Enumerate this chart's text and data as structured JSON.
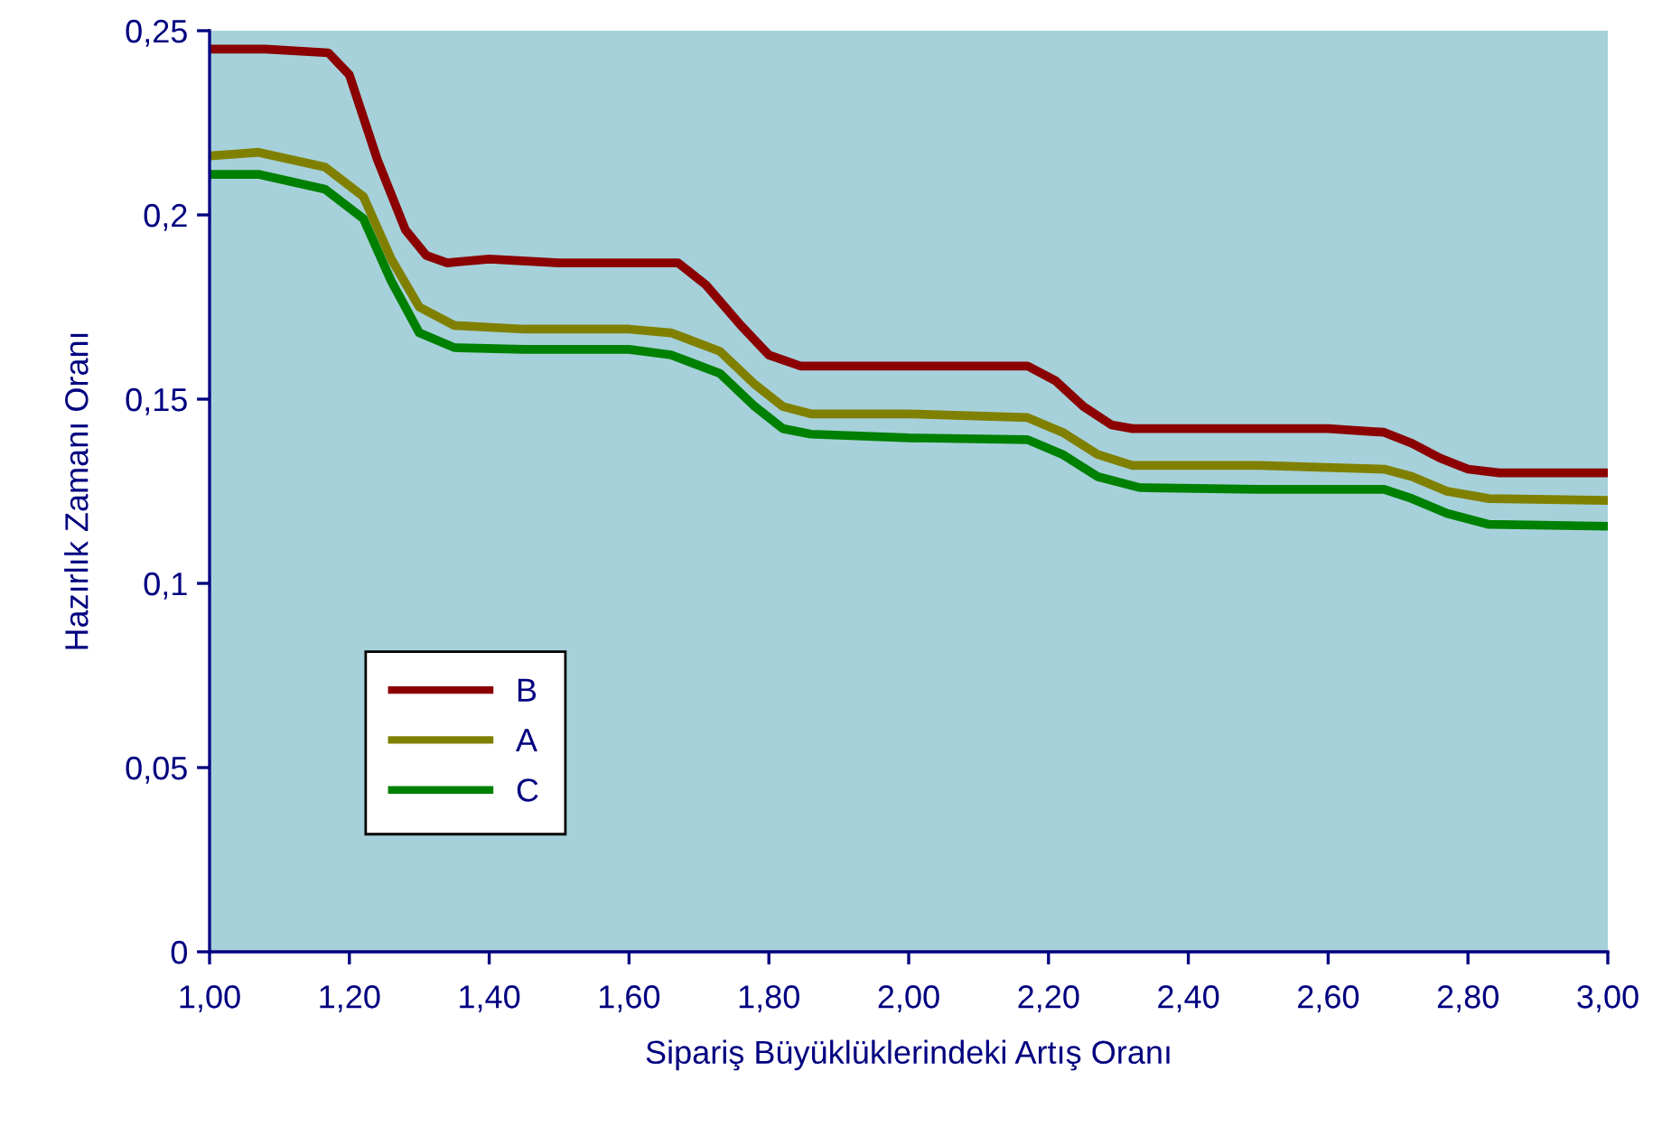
{
  "chart_data": {
    "type": "line",
    "xlabel": "Sipariş Büyüklüklerindeki Artış Oranı",
    "ylabel": "Hazırlık Zamanı Oranı",
    "xlim": [
      1.0,
      3.0
    ],
    "ylim": [
      0,
      0.25
    ],
    "xticks": [
      {
        "value": 1.0,
        "label": "1,00"
      },
      {
        "value": 1.2,
        "label": "1,20"
      },
      {
        "value": 1.4,
        "label": "1,40"
      },
      {
        "value": 1.6,
        "label": "1,60"
      },
      {
        "value": 1.8,
        "label": "1,80"
      },
      {
        "value": 2.0,
        "label": "2,00"
      },
      {
        "value": 2.2,
        "label": "2,20"
      },
      {
        "value": 2.4,
        "label": "2,40"
      },
      {
        "value": 2.6,
        "label": "2,60"
      },
      {
        "value": 2.8,
        "label": "2,80"
      },
      {
        "value": 3.0,
        "label": "3,00"
      }
    ],
    "yticks": [
      0,
      {
        "value": 0.05,
        "label": "0,05"
      },
      {
        "value": 0.1,
        "label": "0,1"
      },
      {
        "value": 0.15,
        "label": "0,15"
      },
      {
        "value": 0.2,
        "label": "0,2"
      },
      {
        "value": 0.25,
        "label": "0,25"
      }
    ],
    "grid": false,
    "legend": "bottom left",
    "marker": "none",
    "line_style": "solid",
    "series": [
      {
        "name": "B",
        "color": "#8b0000",
        "x": [
          1.0,
          1.08,
          1.17,
          1.2,
          1.24,
          1.28,
          1.31,
          1.34,
          1.4,
          1.5,
          1.62,
          1.67,
          1.71,
          1.76,
          1.8,
          1.845,
          1.95,
          2.1,
          2.17,
          2.21,
          2.25,
          2.29,
          2.32,
          2.45,
          2.6,
          2.68,
          2.72,
          2.76,
          2.8,
          2.845,
          3.0
        ],
        "values": [
          0.245,
          0.245,
          0.244,
          0.238,
          0.215,
          0.196,
          0.189,
          0.187,
          0.188,
          0.187,
          0.187,
          0.187,
          0.181,
          0.17,
          0.162,
          0.159,
          0.159,
          0.159,
          0.159,
          0.155,
          0.148,
          0.143,
          0.142,
          0.142,
          0.142,
          0.141,
          0.138,
          0.134,
          0.131,
          0.13,
          0.13
        ]
      },
      {
        "name": "A",
        "color": "#808000",
        "x": [
          1.0,
          1.07,
          1.165,
          1.22,
          1.26,
          1.3,
          1.35,
          1.45,
          1.6,
          1.66,
          1.73,
          1.78,
          1.82,
          1.86,
          2.0,
          2.17,
          2.22,
          2.27,
          2.32,
          2.5,
          2.68,
          2.72,
          2.77,
          2.83,
          3.0
        ],
        "values": [
          0.216,
          0.217,
          0.213,
          0.205,
          0.188,
          0.175,
          0.17,
          0.169,
          0.169,
          0.168,
          0.163,
          0.154,
          0.148,
          0.146,
          0.146,
          0.145,
          0.141,
          0.135,
          0.132,
          0.132,
          0.131,
          0.129,
          0.125,
          0.123,
          0.1225
        ]
      },
      {
        "name": "C",
        "color": "#008000",
        "x": [
          1.0,
          1.07,
          1.165,
          1.22,
          1.26,
          1.3,
          1.35,
          1.45,
          1.6,
          1.66,
          1.73,
          1.78,
          1.82,
          1.86,
          2.0,
          2.17,
          2.22,
          2.27,
          2.33,
          2.5,
          2.68,
          2.72,
          2.77,
          2.83,
          3.0
        ],
        "values": [
          0.211,
          0.211,
          0.207,
          0.199,
          0.182,
          0.168,
          0.164,
          0.1635,
          0.1635,
          0.162,
          0.157,
          0.148,
          0.142,
          0.1405,
          0.1395,
          0.139,
          0.135,
          0.129,
          0.126,
          0.1255,
          0.1255,
          0.123,
          0.119,
          0.116,
          0.1155
        ]
      }
    ]
  }
}
